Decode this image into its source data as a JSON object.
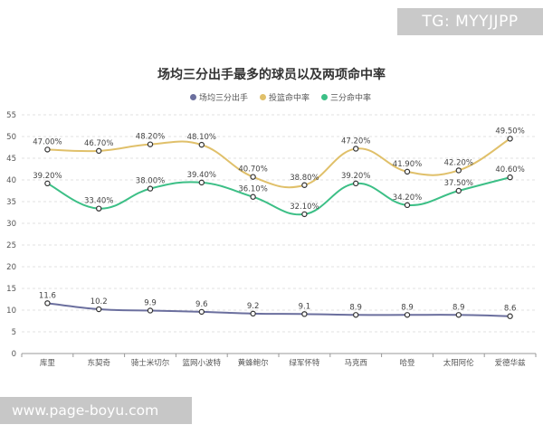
{
  "watermark": {
    "top": "TG: MYYJJPP",
    "bottom": "www.page-boyu.com"
  },
  "chart_data": {
    "type": "line",
    "title": "场均三分出手最多的球员以及两项命中率",
    "xlabel": "",
    "ylabel": "",
    "ylim": [
      0,
      55
    ],
    "yticks": [
      0,
      5,
      10,
      15,
      20,
      25,
      30,
      35,
      40,
      45,
      50,
      55
    ],
    "grid": "horizontal dashed",
    "legend": "top-center",
    "categories": [
      "库里",
      "东契奇",
      "骑士米切尔",
      "篮网小波特",
      "黄蜂鲍尔",
      "绿军怀特",
      "马克西",
      "哈登",
      "太阳阿伦",
      "爱德华兹"
    ],
    "series": [
      {
        "name": "场均三分出手",
        "color": "#6b6f9e",
        "values": [
          11.6,
          10.2,
          9.9,
          9.6,
          9.2,
          9.1,
          8.9,
          8.9,
          8.9,
          8.6
        ],
        "labels": [
          "11.6",
          "10.2",
          "9.9",
          "9.6",
          "9.2",
          "9.1",
          "8.9",
          "8.9",
          "8.9",
          "8.6"
        ]
      },
      {
        "name": "投篮命中率",
        "color": "#e0c06a",
        "values": [
          47.0,
          46.7,
          48.2,
          48.1,
          40.7,
          38.8,
          47.2,
          41.9,
          42.2,
          49.5
        ],
        "labels": [
          "47.00%",
          "46.70%",
          "48.20%",
          "48.10%",
          "40.70%",
          "38.80%",
          "47.20%",
          "41.90%",
          "42.20%",
          "49.50%"
        ]
      },
      {
        "name": "三分命中率",
        "color": "#3cbf86",
        "values": [
          39.2,
          33.4,
          38.0,
          39.4,
          36.1,
          32.1,
          39.2,
          34.2,
          37.5,
          40.6
        ],
        "labels": [
          "39.20%",
          "33.40%",
          "38.00%",
          "39.40%",
          "36.10%",
          "32.10%",
          "39.20%",
          "34.20%",
          "37.50%",
          "40.60%"
        ]
      }
    ]
  }
}
